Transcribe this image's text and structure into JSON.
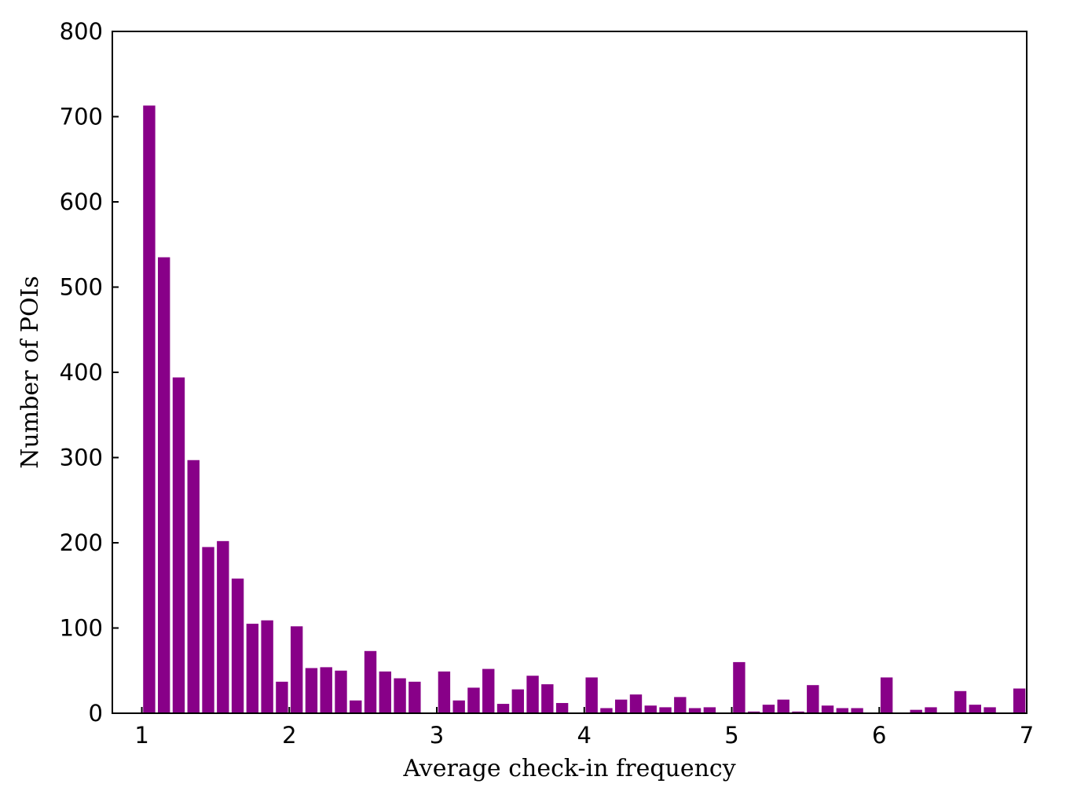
{
  "chart_data": {
    "type": "bar",
    "title": "",
    "xlabel": "Average check-in frequency",
    "ylabel": "Number of POIs",
    "xlim": [
      0.8,
      7
    ],
    "ylim": [
      0,
      800
    ],
    "xticks": [
      "1",
      "2",
      "3",
      "4",
      "5",
      "6",
      "7"
    ],
    "yticks": [
      "0",
      "100",
      "200",
      "300",
      "400",
      "500",
      "600",
      "700",
      "800"
    ],
    "grid": false,
    "legend": "none",
    "bin_width": 0.1,
    "bar_color": "#880088",
    "series": [
      {
        "x": [
          1.05,
          1.15,
          1.25,
          1.35,
          1.45,
          1.55,
          1.65,
          1.75,
          1.85,
          1.95,
          2.05,
          2.15,
          2.25,
          2.35,
          2.45,
          2.55,
          2.65,
          2.75,
          2.85,
          2.95,
          3.05,
          3.15,
          3.25,
          3.35,
          3.45,
          3.55,
          3.65,
          3.75,
          3.85,
          3.95,
          4.05,
          4.15,
          4.25,
          4.35,
          4.45,
          4.55,
          4.65,
          4.75,
          4.85,
          4.95,
          5.05,
          5.15,
          5.25,
          5.35,
          5.45,
          5.55,
          5.65,
          5.75,
          5.85,
          5.95,
          6.05,
          6.15,
          6.25,
          6.35,
          6.45,
          6.55,
          6.65,
          6.75,
          6.85,
          6.95
        ],
        "values": [
          713,
          535,
          394,
          297,
          195,
          202,
          158,
          105,
          109,
          37,
          102,
          53,
          54,
          50,
          15,
          73,
          49,
          41,
          37,
          0,
          49,
          15,
          30,
          52,
          11,
          28,
          44,
          34,
          12,
          0,
          42,
          6,
          16,
          22,
          9,
          7,
          19,
          6,
          7,
          0,
          60,
          2,
          10,
          16,
          2,
          33,
          9,
          6,
          6,
          0,
          42,
          0,
          4,
          7,
          0,
          26,
          10,
          7,
          0,
          29
        ]
      }
    ]
  }
}
